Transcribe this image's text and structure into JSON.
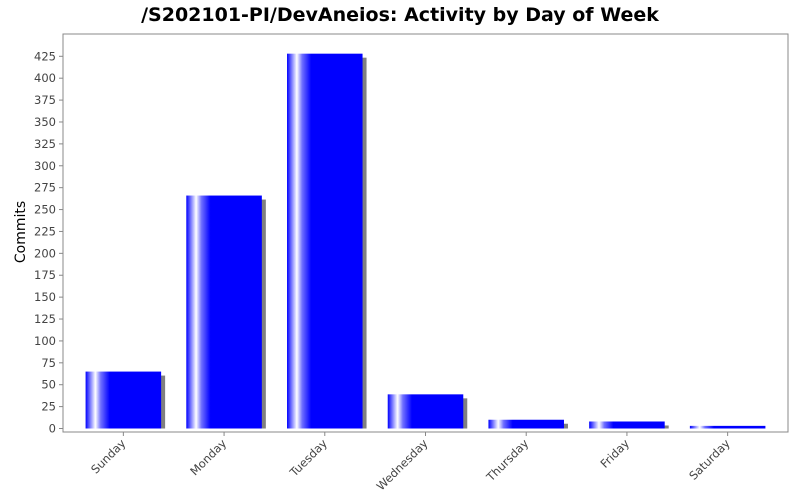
{
  "chart_data": {
    "type": "bar",
    "title": "/S202101-PI/DevAneios: Activity by Day of Week",
    "xlabel": "",
    "ylabel": "Commits",
    "categories": [
      "Sunday",
      "Monday",
      "Tuesday",
      "Wednesday",
      "Thursday",
      "Friday",
      "Saturday"
    ],
    "values": [
      65,
      266,
      428,
      39,
      10,
      8,
      3
    ],
    "ylim": [
      0,
      440
    ],
    "yticks": [
      0,
      25,
      50,
      75,
      100,
      125,
      150,
      175,
      200,
      225,
      250,
      275,
      300,
      325,
      350,
      375,
      400,
      425
    ],
    "grid": false,
    "legend": "none",
    "colors": {
      "bar": "#0000ff",
      "bar_highlight": "#ffffff",
      "shadow": "#808080",
      "axis": "#888888",
      "tick_text": "#444444"
    }
  }
}
